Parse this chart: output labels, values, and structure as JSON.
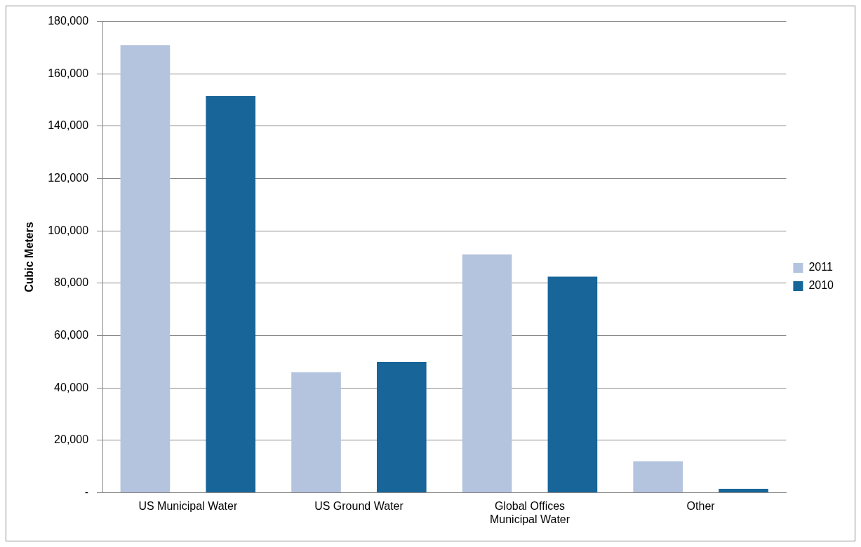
{
  "chart_data": {
    "type": "bar",
    "ylabel": "Cubic Meters",
    "categories": [
      "US Municipal Water",
      "US Ground Water",
      "Global Offices Municipal Water",
      "Other"
    ],
    "series": [
      {
        "name": "2011",
        "color": "#b4c4de",
        "values": [
          171000,
          46000,
          91000,
          12000
        ]
      },
      {
        "name": "2010",
        "color": "#176599",
        "values": [
          151500,
          50000,
          82500,
          1500
        ]
      }
    ],
    "ylim": [
      0,
      180000
    ],
    "yticks": [
      {
        "value": 0,
        "label": "-"
      },
      {
        "value": 20000,
        "label": "20,000"
      },
      {
        "value": 40000,
        "label": "40,000"
      },
      {
        "value": 60000,
        "label": "60,000"
      },
      {
        "value": 80000,
        "label": "80,000"
      },
      {
        "value": 100000,
        "label": "100,000"
      },
      {
        "value": 120000,
        "label": "120,000"
      },
      {
        "value": 140000,
        "label": "140,000"
      },
      {
        "value": 160000,
        "label": "160,000"
      },
      {
        "value": 180000,
        "label": "180,000"
      }
    ],
    "grid": "y",
    "legend": "right"
  }
}
